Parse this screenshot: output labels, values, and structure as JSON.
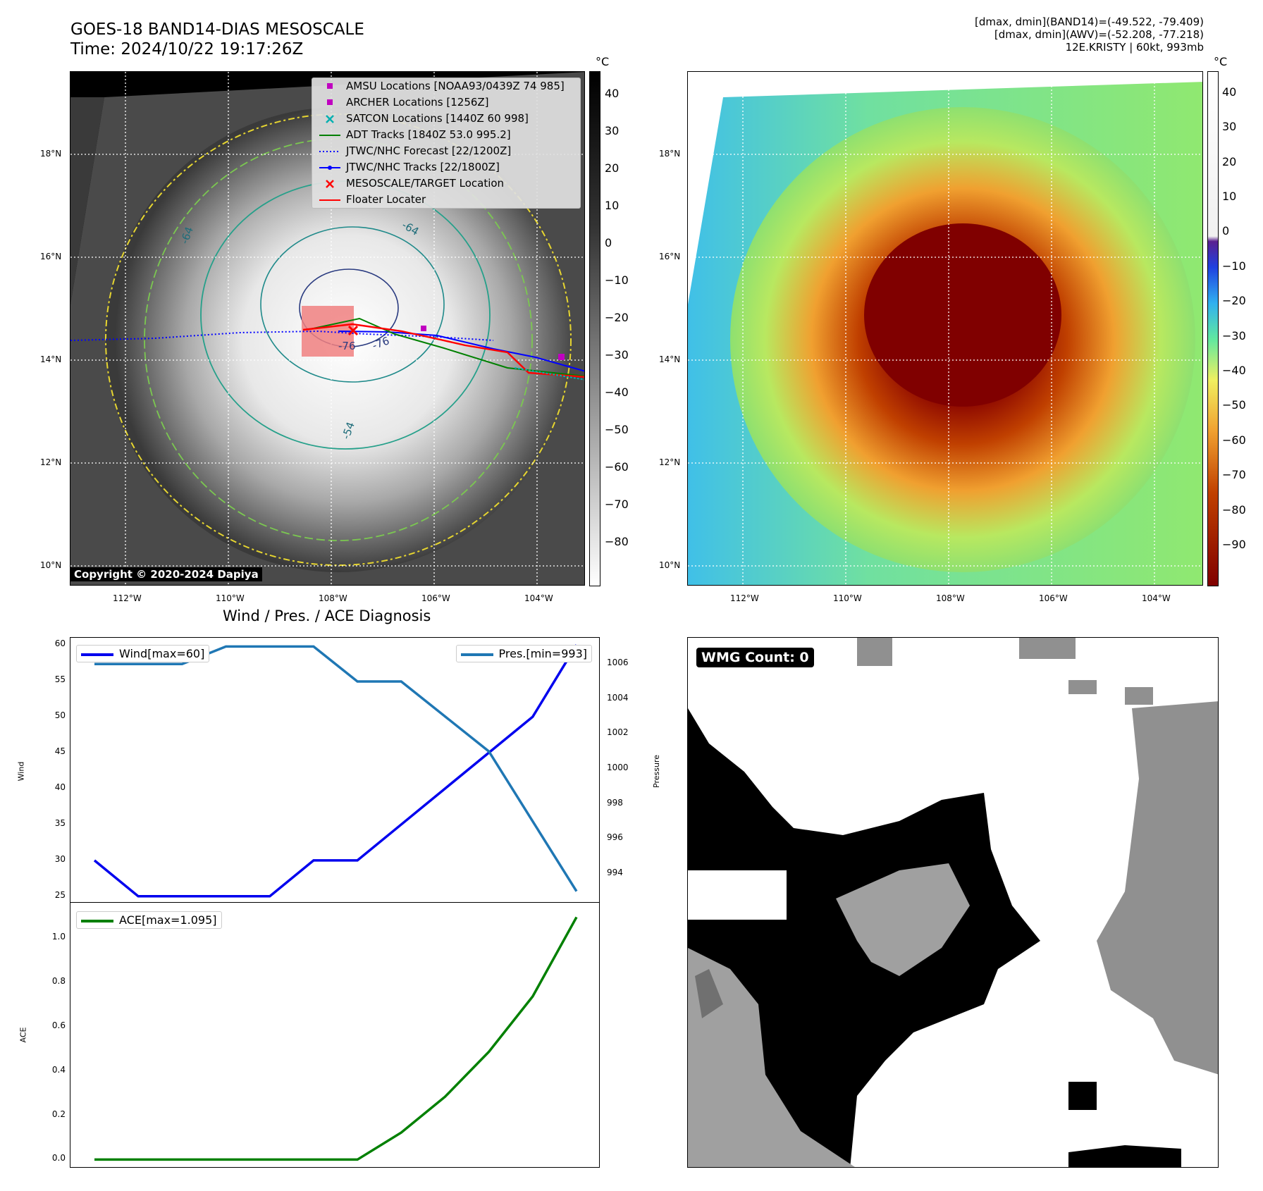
{
  "header": {
    "title_line1": "GOES-18 BAND14-DIAS MESOSCALE",
    "title_line2": "Time: 2024/10/22 19:17:26Z",
    "info_line1": "[dmax, dmin](BAND14)=(-49.522, -79.409)",
    "info_line2": "[dmax, dmin](AWV)=(-52.208, -77.218)",
    "info_line3": "12E.KRISTY | 60kt, 993mb"
  },
  "map_left": {
    "lat_ticks": [
      "18°N",
      "16°N",
      "14°N",
      "12°N",
      "10°N"
    ],
    "lon_ticks": [
      "112°W",
      "110°W",
      "108°W",
      "106°W",
      "104°W"
    ],
    "copyright": "Copyright © 2020-2024 Dapiya",
    "contour_labels": [
      "-64",
      "-64",
      "-76",
      "-76",
      "-54"
    ],
    "legend": [
      {
        "label": "AMSU Locations [NOAA93/0439Z 74 985]",
        "color": "#c000c0",
        "marker": "square"
      },
      {
        "label": "ARCHER Locations [1256Z]",
        "color": "#c000c0",
        "marker": "square"
      },
      {
        "label": "SATCON Locations [1440Z 60 998]",
        "color": "#00b0b0",
        "marker": "x"
      },
      {
        "label": "ADT Tracks [1840Z 53.0 995.2]",
        "color": "#008000",
        "marker": "line"
      },
      {
        "label": "JTWC/NHC Forecast [22/1200Z]",
        "color": "#0000ff",
        "marker": "dotted"
      },
      {
        "label": "JTWC/NHC Tracks [22/1800Z]",
        "color": "#0000ff",
        "marker": "line-dot"
      },
      {
        "label": "MESOSCALE/TARGET Location",
        "color": "#ff0000",
        "marker": "x"
      },
      {
        "label": "Floater Locater",
        "color": "#ff0000",
        "marker": "line"
      }
    ],
    "colorbar_unit": "°C",
    "colorbar_ticks": [
      "40",
      "30",
      "20",
      "10",
      "0",
      "−10",
      "−20",
      "−30",
      "−40",
      "−50",
      "−60",
      "−70",
      "−80"
    ]
  },
  "map_right": {
    "lat_ticks": [
      "18°N",
      "16°N",
      "14°N",
      "12°N",
      "10°N"
    ],
    "lon_ticks": [
      "112°W",
      "110°W",
      "108°W",
      "106°W",
      "104°W"
    ],
    "colorbar_unit": "°C",
    "colorbar_ticks": [
      "40",
      "30",
      "20",
      "10",
      "0",
      "−10",
      "−20",
      "−30",
      "−40",
      "−50",
      "−60",
      "−70",
      "−80",
      "−90"
    ]
  },
  "wmg": {
    "label": "WMG Count: 0"
  },
  "colors": {
    "wind": "#0000ee",
    "pres": "#1f77b4",
    "ace": "#008000"
  },
  "chart_data": [
    {
      "type": "line",
      "title": "Wind / Pres. / ACE Diagnosis",
      "ylabel": "Wind",
      "ylabel_right": "Pressure",
      "ylim": [
        24,
        61
      ],
      "ylim_right": [
        992.3,
        1007.5
      ],
      "yticks": [
        25,
        30,
        35,
        40,
        45,
        50,
        55,
        60
      ],
      "yticks_right": [
        994,
        996,
        998,
        1000,
        1002,
        1004,
        1006
      ],
      "series": [
        {
          "name": "Wind[max=60]",
          "axis": "left",
          "values": [
            30,
            25,
            25,
            25,
            25,
            30,
            30,
            35,
            40,
            45,
            50,
            60
          ]
        },
        {
          "name": "Pres.[min=993]",
          "axis": "right",
          "values": [
            1006,
            1006,
            1006,
            1007,
            1007,
            1007,
            1005,
            1005,
            1003,
            1001,
            997,
            993
          ]
        }
      ]
    },
    {
      "type": "line",
      "ylabel": "ACE",
      "ylim": [
        -0.04,
        1.16
      ],
      "yticks": [
        0.0,
        0.2,
        0.4,
        0.6,
        0.8,
        1.0
      ],
      "series": [
        {
          "name": "ACE[max=1.095]",
          "axis": "left",
          "values": [
            0,
            0,
            0,
            0,
            0,
            0,
            0,
            0.122,
            0.284,
            0.487,
            0.737,
            1.095
          ]
        }
      ]
    }
  ]
}
